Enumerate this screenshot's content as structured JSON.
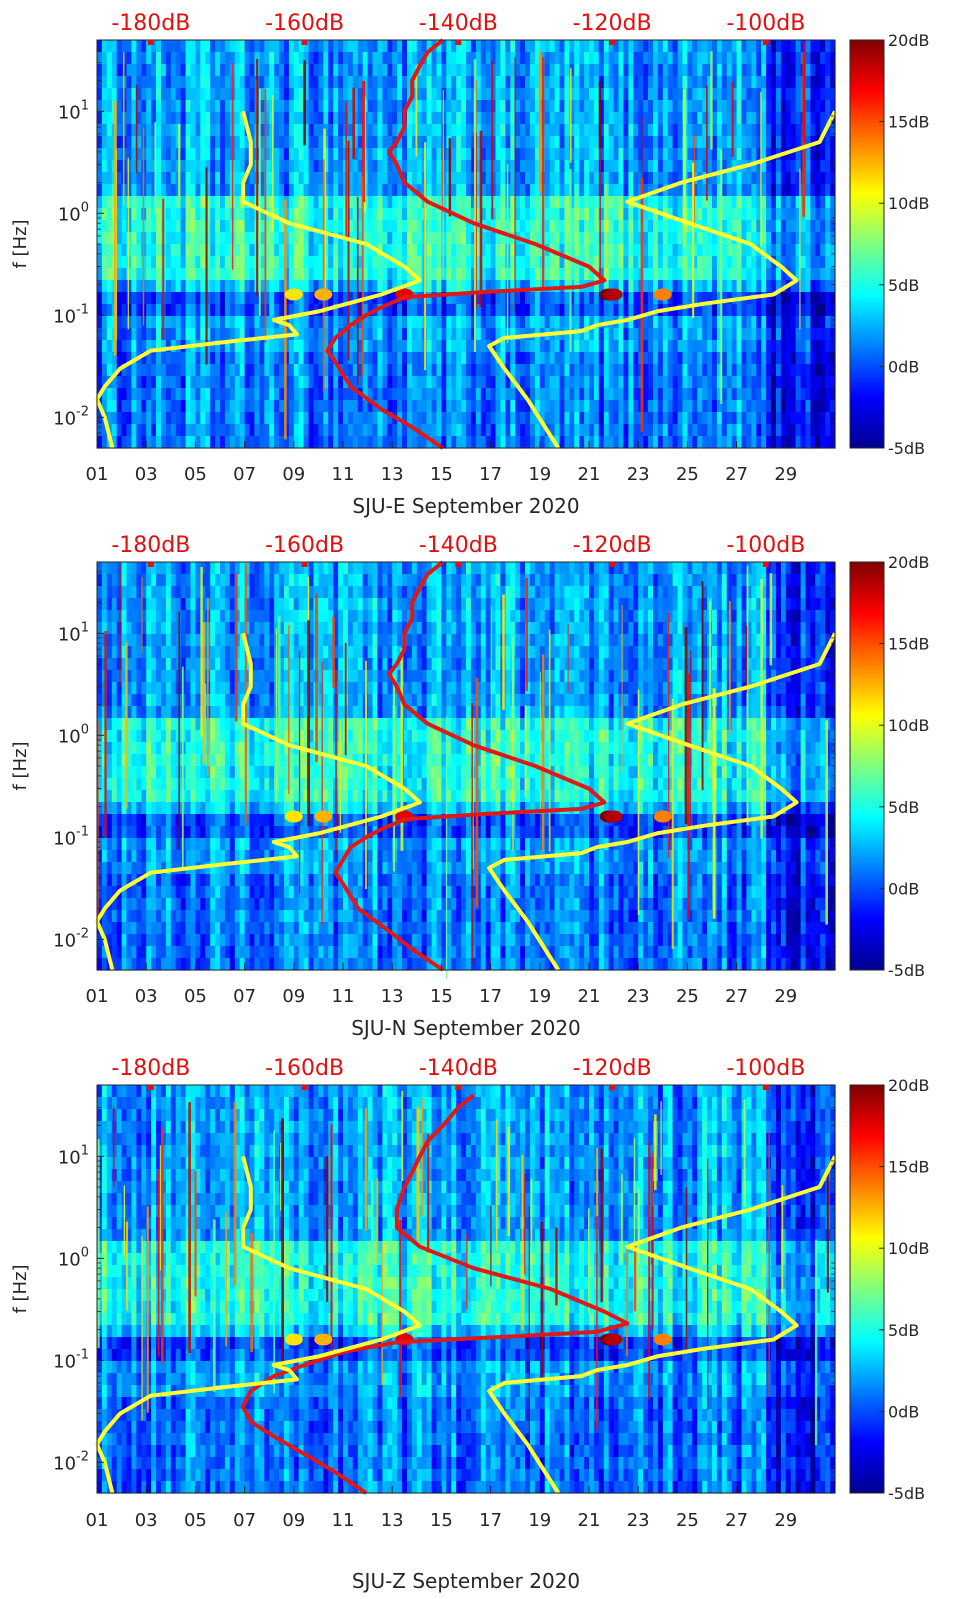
{
  "chart_data": [
    {
      "type": "heatmap",
      "title": "",
      "xlabel": "SJU-E September 2020",
      "ylabel": "f [Hz]",
      "x_ticks": [
        "01",
        "03",
        "05",
        "07",
        "09",
        "11",
        "13",
        "15",
        "17",
        "19",
        "21",
        "23",
        "25",
        "27",
        "29"
      ],
      "y_ticks": [
        {
          "value": 10,
          "label": "10^1"
        },
        {
          "value": 1,
          "label": "10^0"
        },
        {
          "value": 0.1,
          "label": "10^-1"
        },
        {
          "value": 0.01,
          "label": "10^-2"
        }
      ],
      "ylim": [
        0.005,
        50
      ],
      "xlim": [
        1,
        31
      ],
      "top_axis": {
        "label_color": "#e01010",
        "ticks": [
          "-180dB",
          "-160dB",
          "-140dB",
          "-120dB",
          "-100dB"
        ],
        "range_db": [
          -187,
          -91
        ]
      },
      "colorbar": {
        "ticks": [
          "20dB",
          "15dB",
          "10dB",
          "5dB",
          "0dB",
          "-5dB"
        ],
        "range_db": [
          -5,
          20
        ],
        "colormap": "jet"
      },
      "series": [
        {
          "name": "red spectrum",
          "color": "#e01818",
          "axis": "top_db",
          "points": [
            [
              -142,
              50
            ],
            [
              -144,
              38
            ],
            [
              -145,
              28
            ],
            [
              -146,
              20
            ],
            [
              -146,
              14
            ],
            [
              -147,
              10
            ],
            [
              -147,
              7
            ],
            [
              -148,
              5
            ],
            [
              -149,
              4
            ],
            [
              -148,
              3
            ],
            [
              -147,
              2
            ],
            [
              -144,
              1.3
            ],
            [
              -138,
              0.8
            ],
            [
              -130,
              0.5
            ],
            [
              -123,
              0.3
            ],
            [
              -121,
              0.22
            ],
            [
              -124,
              0.19
            ],
            [
              -136,
              0.17
            ],
            [
              -147,
              0.15
            ],
            [
              -150,
              0.12
            ],
            [
              -152,
              0.1
            ],
            [
              -154,
              0.08
            ],
            [
              -156,
              0.06
            ],
            [
              -157,
              0.045
            ],
            [
              -156,
              0.035
            ],
            [
              -154,
              0.02
            ],
            [
              -150,
              0.012
            ],
            [
              -146,
              0.008
            ],
            [
              -142,
              0.005
            ]
          ]
        },
        {
          "name": "yellow curve left",
          "color": "#ffff33",
          "axis": "top_db",
          "points": [
            [
              -168,
              10
            ],
            [
              -167,
              5
            ],
            [
              -167,
              3
            ],
            [
              -168,
              2
            ],
            [
              -168,
              1.3
            ],
            [
              -162,
              0.8
            ],
            [
              -152,
              0.5
            ],
            [
              -147,
              0.3
            ],
            [
              -145,
              0.22
            ],
            [
              -150,
              0.16
            ],
            [
              -158,
              0.11
            ],
            [
              -164,
              0.09
            ],
            [
              -162,
              0.08
            ],
            [
              -161,
              0.065
            ],
            [
              -170,
              0.055
            ],
            [
              -180,
              0.045
            ],
            [
              -184,
              0.03
            ],
            [
              -186,
              0.02
            ],
            [
              -187,
              0.015
            ],
            [
              -186,
              0.01
            ],
            [
              -185,
              0.005
            ]
          ]
        },
        {
          "name": "yellow curve right",
          "color": "#ffff33",
          "axis": "top_db",
          "points": [
            [
              -91,
              10
            ],
            [
              -93,
              5
            ],
            [
              -102,
              3
            ],
            [
              -111,
              2
            ],
            [
              -118,
              1.3
            ],
            [
              -110,
              0.8
            ],
            [
              -102,
              0.5
            ],
            [
              -98,
              0.3
            ],
            [
              -96,
              0.22
            ],
            [
              -99,
              0.16
            ],
            [
              -108,
              0.13
            ],
            [
              -114,
              0.11
            ],
            [
              -118,
              0.09
            ],
            [
              -122,
              0.08
            ],
            [
              -124,
              0.07
            ],
            [
              -134,
              0.06
            ],
            [
              -136,
              0.05
            ],
            [
              -134,
              0.03
            ],
            [
              -131,
              0.015
            ],
            [
              -127,
              0.005
            ]
          ]
        }
      ]
    },
    {
      "type": "heatmap",
      "title": "",
      "xlabel": "SJU-N September 2020",
      "ylabel": "f [Hz]",
      "x_ticks": [
        "01",
        "03",
        "05",
        "07",
        "09",
        "11",
        "13",
        "15",
        "17",
        "19",
        "21",
        "23",
        "25",
        "27",
        "29"
      ],
      "y_ticks": [
        {
          "value": 10,
          "label": "10^1"
        },
        {
          "value": 1,
          "label": "10^0"
        },
        {
          "value": 0.1,
          "label": "10^-1"
        },
        {
          "value": 0.01,
          "label": "10^-2"
        }
      ],
      "ylim": [
        0.005,
        50
      ],
      "xlim": [
        1,
        31
      ],
      "top_axis": {
        "label_color": "#e01010",
        "ticks": [
          "-180dB",
          "-160dB",
          "-140dB",
          "-120dB",
          "-100dB"
        ],
        "range_db": [
          -187,
          -91
        ]
      },
      "colorbar": {
        "ticks": [
          "20dB",
          "15dB",
          "10dB",
          "5dB",
          "0dB",
          "-5dB"
        ],
        "range_db": [
          -5,
          20
        ],
        "colormap": "jet"
      },
      "series": [
        {
          "name": "red spectrum",
          "color": "#e01818",
          "axis": "top_db",
          "points": [
            [
              -142,
              50
            ],
            [
              -144,
              38
            ],
            [
              -145,
              28
            ],
            [
              -146,
              20
            ],
            [
              -146,
              14
            ],
            [
              -147,
              10
            ],
            [
              -147,
              7
            ],
            [
              -148,
              5
            ],
            [
              -149,
              4
            ],
            [
              -148,
              3
            ],
            [
              -147,
              2
            ],
            [
              -144,
              1.3
            ],
            [
              -138,
              0.8
            ],
            [
              -130,
              0.5
            ],
            [
              -123,
              0.3
            ],
            [
              -121,
              0.22
            ],
            [
              -124,
              0.19
            ],
            [
              -136,
              0.17
            ],
            [
              -147,
              0.15
            ],
            [
              -150,
              0.12
            ],
            [
              -152,
              0.1
            ],
            [
              -154,
              0.08
            ],
            [
              -155,
              0.06
            ],
            [
              -156,
              0.045
            ],
            [
              -155,
              0.035
            ],
            [
              -153,
              0.02
            ],
            [
              -149,
              0.012
            ],
            [
              -146,
              0.008
            ],
            [
              -142,
              0.005
            ]
          ]
        },
        {
          "name": "yellow curve left",
          "color": "#ffff33",
          "axis": "top_db",
          "points": [
            [
              -168,
              10
            ],
            [
              -167,
              5
            ],
            [
              -167,
              3
            ],
            [
              -168,
              2
            ],
            [
              -168,
              1.3
            ],
            [
              -162,
              0.8
            ],
            [
              -152,
              0.5
            ],
            [
              -147,
              0.3
            ],
            [
              -145,
              0.22
            ],
            [
              -150,
              0.16
            ],
            [
              -158,
              0.11
            ],
            [
              -164,
              0.09
            ],
            [
              -162,
              0.08
            ],
            [
              -161,
              0.065
            ],
            [
              -170,
              0.055
            ],
            [
              -180,
              0.045
            ],
            [
              -184,
              0.03
            ],
            [
              -186,
              0.02
            ],
            [
              -187,
              0.015
            ],
            [
              -186,
              0.01
            ],
            [
              -185,
              0.005
            ]
          ]
        },
        {
          "name": "yellow curve right",
          "color": "#ffff33",
          "axis": "top_db",
          "points": [
            [
              -91,
              10
            ],
            [
              -93,
              5
            ],
            [
              -102,
              3
            ],
            [
              -111,
              2
            ],
            [
              -118,
              1.3
            ],
            [
              -110,
              0.8
            ],
            [
              -102,
              0.5
            ],
            [
              -98,
              0.3
            ],
            [
              -96,
              0.22
            ],
            [
              -99,
              0.16
            ],
            [
              -108,
              0.13
            ],
            [
              -114,
              0.11
            ],
            [
              -118,
              0.09
            ],
            [
              -122,
              0.08
            ],
            [
              -124,
              0.07
            ],
            [
              -134,
              0.06
            ],
            [
              -136,
              0.05
            ],
            [
              -134,
              0.03
            ],
            [
              -131,
              0.015
            ],
            [
              -127,
              0.005
            ]
          ]
        }
      ]
    },
    {
      "type": "heatmap",
      "title": "",
      "xlabel": "SJU-Z September 2020",
      "ylabel": "f [Hz]",
      "x_ticks": [
        "01",
        "03",
        "05",
        "07",
        "09",
        "11",
        "13",
        "15",
        "17",
        "19",
        "21",
        "23",
        "25",
        "27",
        "29"
      ],
      "y_ticks": [
        {
          "value": 10,
          "label": "10^1"
        },
        {
          "value": 1,
          "label": "10^0"
        },
        {
          "value": 0.1,
          "label": "10^-1"
        },
        {
          "value": 0.01,
          "label": "10^-2"
        }
      ],
      "ylim": [
        0.005,
        50
      ],
      "xlim": [
        1,
        31
      ],
      "top_axis": {
        "label_color": "#e01010",
        "ticks": [
          "-180dB",
          "-160dB",
          "-140dB",
          "-120dB",
          "-100dB"
        ],
        "range_db": [
          -187,
          -91
        ]
      },
      "colorbar": {
        "ticks": [
          "20dB",
          "15dB",
          "10dB",
          "5dB",
          "0dB",
          "-5dB"
        ],
        "range_db": [
          -5,
          20
        ],
        "colormap": "jet"
      },
      "series": [
        {
          "name": "red spectrum",
          "color": "#e01818",
          "axis": "top_db",
          "points": [
            [
              -138,
              40
            ],
            [
              -140,
              30
            ],
            [
              -142,
              20
            ],
            [
              -144,
              14
            ],
            [
              -145,
              10
            ],
            [
              -146,
              7
            ],
            [
              -147,
              5
            ],
            [
              -148,
              3
            ],
            [
              -148,
              2
            ],
            [
              -145,
              1.3
            ],
            [
              -138,
              0.8
            ],
            [
              -128,
              0.5
            ],
            [
              -121,
              0.3
            ],
            [
              -118,
              0.23
            ],
            [
              -122,
              0.19
            ],
            [
              -134,
              0.17
            ],
            [
              -148,
              0.15
            ],
            [
              -155,
              0.12
            ],
            [
              -160,
              0.09
            ],
            [
              -164,
              0.07
            ],
            [
              -167,
              0.05
            ],
            [
              -168,
              0.035
            ],
            [
              -167,
              0.025
            ],
            [
              -164,
              0.018
            ],
            [
              -160,
              0.012
            ],
            [
              -156,
              0.008
            ],
            [
              -152,
              0.005
            ]
          ]
        },
        {
          "name": "yellow curve left",
          "color": "#ffff33",
          "axis": "top_db",
          "points": [
            [
              -168,
              10
            ],
            [
              -167,
              5
            ],
            [
              -167,
              3
            ],
            [
              -168,
              2
            ],
            [
              -168,
              1.3
            ],
            [
              -162,
              0.8
            ],
            [
              -152,
              0.5
            ],
            [
              -147,
              0.3
            ],
            [
              -145,
              0.22
            ],
            [
              -150,
              0.16
            ],
            [
              -158,
              0.11
            ],
            [
              -164,
              0.09
            ],
            [
              -162,
              0.08
            ],
            [
              -161,
              0.065
            ],
            [
              -170,
              0.055
            ],
            [
              -180,
              0.045
            ],
            [
              -184,
              0.03
            ],
            [
              -186,
              0.02
            ],
            [
              -187,
              0.015
            ],
            [
              -186,
              0.01
            ],
            [
              -185,
              0.005
            ]
          ]
        },
        {
          "name": "yellow curve right",
          "color": "#ffff33",
          "axis": "top_db",
          "points": [
            [
              -91,
              10
            ],
            [
              -93,
              5
            ],
            [
              -102,
              3
            ],
            [
              -111,
              2
            ],
            [
              -118,
              1.3
            ],
            [
              -110,
              0.8
            ],
            [
              -102,
              0.5
            ],
            [
              -98,
              0.3
            ],
            [
              -96,
              0.22
            ],
            [
              -99,
              0.16
            ],
            [
              -108,
              0.13
            ],
            [
              -114,
              0.11
            ],
            [
              -118,
              0.09
            ],
            [
              -122,
              0.08
            ],
            [
              -124,
              0.07
            ],
            [
              -134,
              0.06
            ],
            [
              -136,
              0.05
            ],
            [
              -134,
              0.03
            ],
            [
              -131,
              0.015
            ],
            [
              -127,
              0.005
            ]
          ]
        }
      ]
    }
  ]
}
